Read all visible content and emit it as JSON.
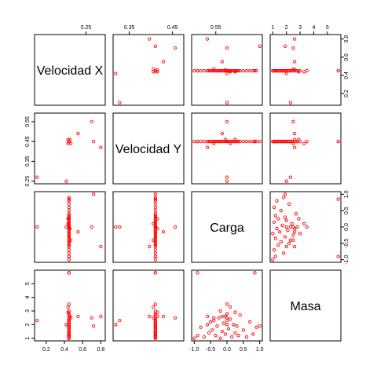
{
  "chart_data": {
    "type": "scatter",
    "variables": [
      "Velocidad X",
      "Velocidad Y",
      "Carga",
      "Masa"
    ],
    "point_color": "#ff0000",
    "ranges": {
      "Velocidad X": [
        0.1,
        0.82
      ],
      "Velocidad Y": [
        0.25,
        0.58
      ],
      "Carga": [
        -1.0,
        1.0
      ],
      "Masa": [
        1.0,
        5.8
      ]
    },
    "ticks": {
      "Velocidad X": {
        "values": [
          0.25,
          0.35,
          0.45,
          0.55,
          0.2,
          0.4,
          0.6,
          0.8
        ],
        "labels": [
          "0.25",
          "0.35",
          "0.45",
          "0.55",
          "0.2",
          "0.4",
          "0.6",
          "0.8"
        ]
      },
      "Velocidad Y": {
        "values": [
          0.25,
          0.35,
          0.45,
          0.55
        ],
        "labels": [
          "0.25",
          "0.35",
          "0.45",
          "0.55"
        ]
      },
      "Carga": {
        "values": [
          -1.0,
          -0.5,
          0.0,
          0.5,
          1.0
        ],
        "labels": [
          "-1.0",
          "-0.5",
          "0.0",
          "0.5",
          "1.0"
        ]
      },
      "Masa": {
        "values": [
          1,
          2,
          3,
          4,
          5
        ],
        "labels": [
          "1",
          "2",
          "3",
          "4",
          "5"
        ]
      }
    },
    "points": [
      {
        "vx": 0.45,
        "vy": 0.45,
        "carga": -1.0,
        "masa": 1.0
      },
      {
        "vx": 0.45,
        "vy": 0.45,
        "carga": -0.9,
        "masa": 1.2
      },
      {
        "vx": 0.45,
        "vy": 0.45,
        "carga": -0.8,
        "masa": 1.8
      },
      {
        "vx": 0.45,
        "vy": 0.45,
        "carga": -0.7,
        "masa": 1.1
      },
      {
        "vx": 0.45,
        "vy": 0.45,
        "carga": -0.6,
        "masa": 2.0
      },
      {
        "vx": 0.45,
        "vy": 0.45,
        "carga": -0.55,
        "masa": 1.4
      },
      {
        "vx": 0.45,
        "vy": 0.45,
        "carga": -0.5,
        "masa": 2.2
      },
      {
        "vx": 0.45,
        "vy": 0.45,
        "carga": -0.45,
        "masa": 1.6
      },
      {
        "vx": 0.45,
        "vy": 0.45,
        "carga": -0.4,
        "masa": 2.3
      },
      {
        "vx": 0.45,
        "vy": 0.45,
        "carga": -0.35,
        "masa": 1.2
      },
      {
        "vx": 0.45,
        "vy": 0.45,
        "carga": -0.3,
        "masa": 1.9
      },
      {
        "vx": 0.45,
        "vy": 0.45,
        "carga": -0.25,
        "masa": 2.5
      },
      {
        "vx": 0.45,
        "vy": 0.45,
        "carga": -0.2,
        "masa": 1.0
      },
      {
        "vx": 0.45,
        "vy": 0.45,
        "carga": -0.15,
        "masa": 1.5
      },
      {
        "vx": 0.45,
        "vy": 0.45,
        "carga": -0.1,
        "masa": 2.1
      },
      {
        "vx": 0.45,
        "vy": 0.45,
        "carga": -0.05,
        "masa": 1.3
      },
      {
        "vx": 0.45,
        "vy": 0.45,
        "carga": 0.0,
        "masa": 2.8
      },
      {
        "vx": 0.45,
        "vy": 0.45,
        "carga": 0.05,
        "masa": 1.7
      },
      {
        "vx": 0.45,
        "vy": 0.45,
        "carga": 0.1,
        "masa": 2.4
      },
      {
        "vx": 0.45,
        "vy": 0.45,
        "carga": 0.15,
        "masa": 1.1
      },
      {
        "vx": 0.45,
        "vy": 0.45,
        "carga": 0.2,
        "masa": 2.0
      },
      {
        "vx": 0.45,
        "vy": 0.45,
        "carga": 0.25,
        "masa": 1.4
      },
      {
        "vx": 0.45,
        "vy": 0.45,
        "carga": 0.3,
        "masa": 1.9
      },
      {
        "vx": 0.45,
        "vy": 0.45,
        "carga": 0.35,
        "masa": 1.2
      },
      {
        "vx": 0.45,
        "vy": 0.45,
        "carga": 0.4,
        "masa": 2.7
      },
      {
        "vx": 0.45,
        "vy": 0.45,
        "carga": 0.5,
        "masa": 1.6
      },
      {
        "vx": 0.45,
        "vy": 0.45,
        "carga": 0.6,
        "masa": 1.1
      },
      {
        "vx": 0.45,
        "vy": 0.45,
        "carga": 0.7,
        "masa": 2.2
      },
      {
        "vx": 0.45,
        "vy": 0.45,
        "carga": 0.8,
        "masa": 1.3
      },
      {
        "vx": 0.45,
        "vy": 0.45,
        "carga": 0.9,
        "masa": 1.8
      },
      {
        "vx": 0.45,
        "vy": 0.45,
        "carga": -0.2,
        "masa": 3.0
      },
      {
        "vx": 0.44,
        "vy": 0.44,
        "carga": 0.1,
        "masa": 3.3
      },
      {
        "vx": 0.46,
        "vy": 0.46,
        "carga": -0.05,
        "masa": 2.6
      },
      {
        "vx": 0.44,
        "vy": 0.46,
        "carga": 0.25,
        "masa": 2.9
      },
      {
        "vx": 0.47,
        "vy": 0.44,
        "carga": -0.4,
        "masa": 2.5
      },
      {
        "vx": 0.45,
        "vy": 0.45,
        "carga": 0.0,
        "masa": 3.5
      },
      {
        "vx": 0.45,
        "vy": 0.45,
        "carga": -0.9,
        "masa": 5.8
      },
      {
        "vx": 0.45,
        "vy": 0.45,
        "carga": 0.85,
        "masa": 5.8
      },
      {
        "vx": 0.1,
        "vy": 0.27,
        "carga": 0.0,
        "masa": 2.3
      },
      {
        "vx": 0.42,
        "vy": 0.25,
        "carga": 0.0,
        "masa": 2.0
      },
      {
        "vx": 0.55,
        "vy": 0.49,
        "carga": -0.15,
        "masa": 2.6
      },
      {
        "vx": 0.7,
        "vy": 0.55,
        "carga": 0.0,
        "masa": 2.5
      },
      {
        "vx": 0.8,
        "vy": 0.42,
        "carga": -0.6,
        "masa": 2.6
      },
      {
        "vx": 0.72,
        "vy": 0.45,
        "carga": 1.0,
        "masa": 1.9
      }
    ]
  }
}
